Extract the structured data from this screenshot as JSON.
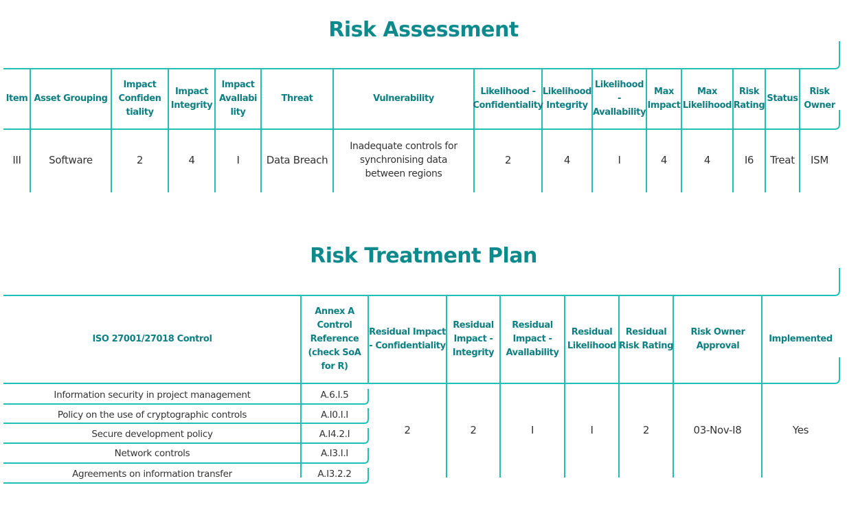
{
  "risk_assessment": {
    "title": "Risk Assessment",
    "headers": {
      "item": "Item",
      "asset_grouping": "Asset Grouping",
      "impact_confidentiality": "Impact Confiden tiality",
      "impact_integrity": "Impact Integrity",
      "impact_availability": "Impact Avallabi lity",
      "threat": "Threat",
      "vulnerability": "Vulnerability",
      "likelihood_confidentiality": "Likelihood - Confidentiality",
      "likelihood_integrity": "Likelihood Integrity",
      "likelihood_availability": "Likelihood - Avallability",
      "max_impact": "Max Impact",
      "max_likelihood": "Max Likelihood",
      "risk_rating": "Risk Rating",
      "status": "Status",
      "risk_owner": "Risk Owner"
    },
    "row": {
      "item": "III",
      "asset_grouping": "Software",
      "impact_confidentiality": "2",
      "impact_integrity": "4",
      "impact_availability": "I",
      "threat": "Data Breach",
      "vulnerability": "Inadequate controls for synchronising data between regions",
      "likelihood_confidentiality": "2",
      "likelihood_integrity": "4",
      "likelihood_availability": "I",
      "max_impact": "4",
      "max_likelihood": "4",
      "risk_rating": "I6",
      "status": "Treat",
      "risk_owner": "ISM"
    }
  },
  "risk_treatment_plan": {
    "title": "Risk Treatment Plan",
    "headers": {
      "control": "ISO 27001/27018 Control",
      "annex_reference": "Annex A Control Reference (check SoA for R)",
      "residual_impact_confidentiality": "Residual Impact - Confidentiality",
      "residual_impact_integrity": "Residual Impact - Integrity",
      "residual_impact_availability": "Residual Impact - Avallability",
      "residual_likelihood": "Residual Likelihood",
      "residual_risk_rating": "Residual Risk Rating",
      "risk_owner_approval": "Risk Owner Approval",
      "implemented": "Implemented"
    },
    "controls": [
      {
        "name": "Information security in project management",
        "ref": "A.6.I.5"
      },
      {
        "name": "Policy on the use of cryptographic controls",
        "ref": "A.I0.I.I"
      },
      {
        "name": "Secure development policy",
        "ref": "A.I4.2.I"
      },
      {
        "name": "Network controls",
        "ref": "A.I3.I.I"
      },
      {
        "name": "Agreements on information transfer",
        "ref": "A.I3.2.2"
      }
    ],
    "values": {
      "residual_impact_confidentiality": "2",
      "residual_impact_integrity": "2",
      "residual_impact_availability": "I",
      "residual_likelihood": "I",
      "residual_risk_rating": "2",
      "risk_owner_approval": "03-Nov-I8",
      "implemented": "Yes"
    }
  },
  "colors": {
    "accent": "#1fbfb3",
    "title": "#0e8a8c",
    "header_text": "#0e7f82"
  }
}
